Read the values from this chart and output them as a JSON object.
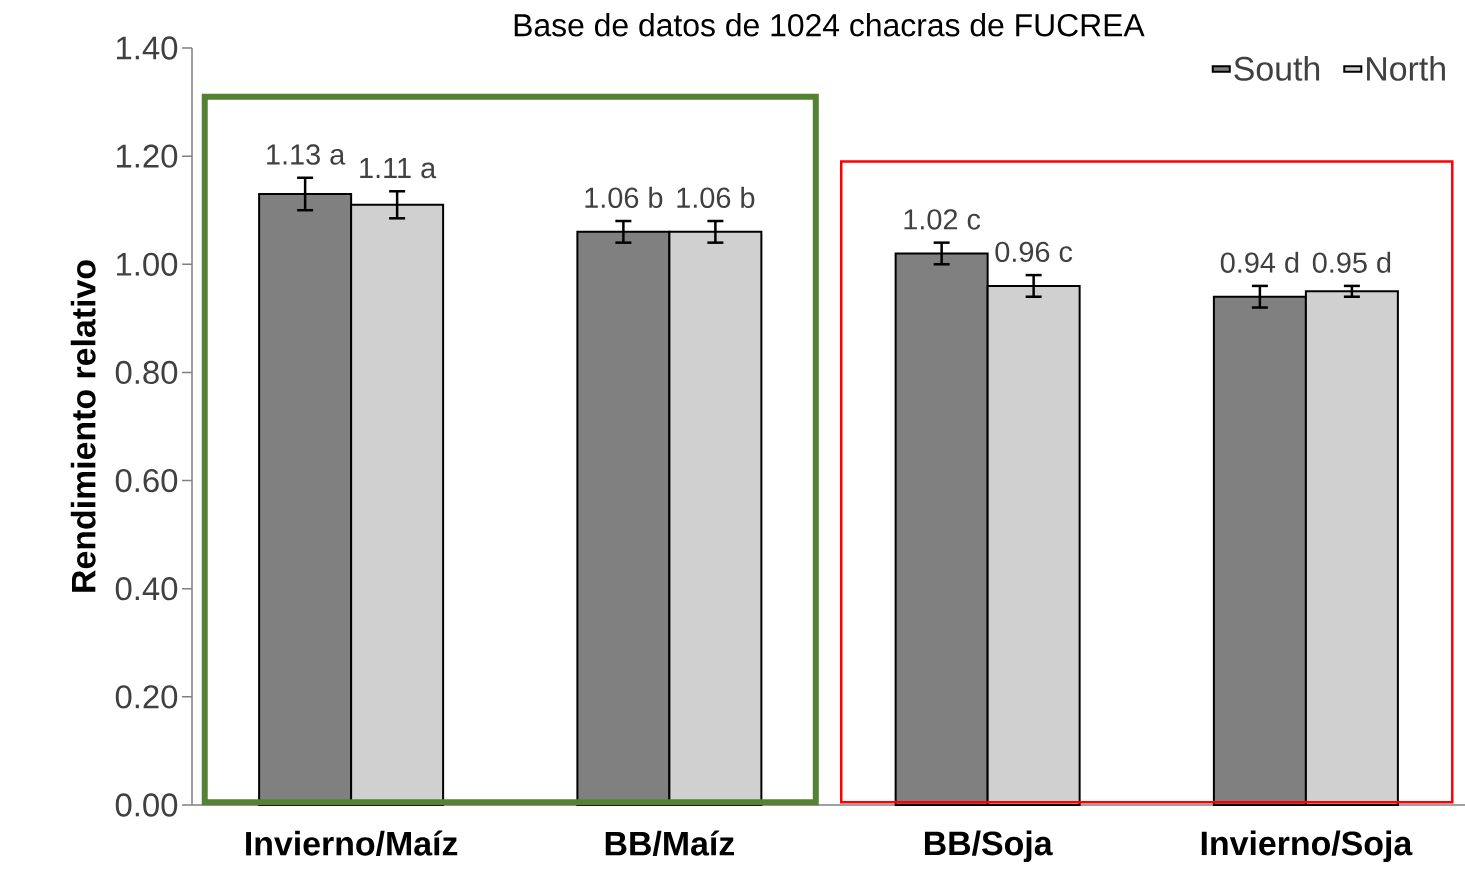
{
  "chart_data": {
    "type": "bar",
    "title": "Base de datos de 1024 chacras de FUCREA",
    "ylabel": "Rendimiento relativo",
    "categories": [
      "Invierno/Maíz",
      "BB/Maíz",
      "BB/Soja",
      "Invierno/Soja"
    ],
    "series": [
      {
        "name": "South",
        "color": "#808080",
        "values": [
          1.13,
          1.06,
          1.02,
          0.94
        ],
        "errors": [
          0.03,
          0.02,
          0.02,
          0.02
        ],
        "value_labels": [
          "1.13 a",
          "1.06 b",
          "1.02 c",
          "0.94 d"
        ]
      },
      {
        "name": "North",
        "color": "#d0d0d0",
        "values": [
          1.11,
          1.06,
          0.96,
          0.95
        ],
        "errors": [
          0.025,
          0.02,
          0.02,
          0.01
        ],
        "value_labels": [
          "1.11 a",
          "1.06 b",
          "0.96 c",
          "0.95 d"
        ]
      }
    ],
    "ylim": [
      0,
      1.4
    ],
    "yticks": [
      {
        "value": 0,
        "label": "0.00"
      },
      {
        "value": 0.2,
        "label": "0.20"
      },
      {
        "value": 0.4,
        "label": "0.40"
      },
      {
        "value": 0.6,
        "label": "0.60"
      },
      {
        "value": 0.8,
        "label": "0.80"
      },
      {
        "value": 1.0,
        "label": "1.00"
      },
      {
        "value": 1.2,
        "label": "1.20"
      },
      {
        "value": 1.4,
        "label": "1.40"
      }
    ],
    "grid": false,
    "legend": "top right"
  }
}
